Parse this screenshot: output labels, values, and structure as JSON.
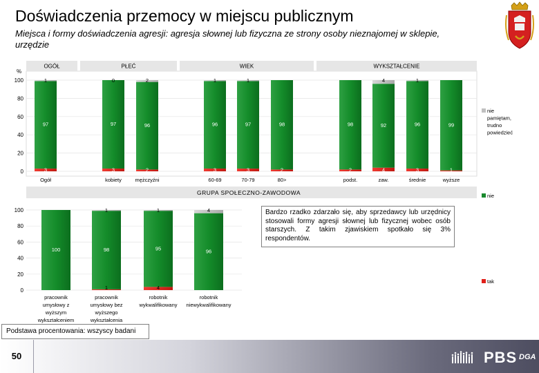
{
  "header": {
    "title": "Doświadczenia przemocy w miejscu publicznym",
    "subtitle": "Miejsca i formy doświadczenia agresji: agresja słownej lub fizyczna ze strony osoby nieznajomej w sklepie, urzędzie"
  },
  "colors": {
    "nie": "#1a8a2e",
    "tak": "#e0201a",
    "nie_pamietam": "#c0c0c0",
    "group_header_bg": "#e6e6e6"
  },
  "chart_data": [
    {
      "type": "bar",
      "stacked": true,
      "ylabel": "%",
      "ylim": [
        0,
        100
      ],
      "yticks": [
        0,
        20,
        40,
        60,
        80,
        100
      ],
      "groups": [
        {
          "label": "OGÓŁ",
          "categories": [
            "Ogół"
          ]
        },
        {
          "label": "PŁEĆ",
          "categories": [
            "kobiety",
            "mężczyźni"
          ]
        },
        {
          "label": "WIEK",
          "categories": [
            "60-69",
            "70-79",
            "80>"
          ]
        },
        {
          "label": "WYKSZTAŁCENIE",
          "categories": [
            "podst.",
            "zaw.",
            "średnie",
            "wyższe"
          ]
        }
      ],
      "categories": [
        "Ogół",
        "kobiety",
        "mężczyźni",
        "60-69",
        "70-79",
        "80>",
        "podst.",
        "zaw.",
        "średnie",
        "wyższe"
      ],
      "series": [
        {
          "name": "tak",
          "values": [
            3,
            3,
            2,
            3,
            3,
            2,
            2,
            4,
            3,
            1
          ],
          "labels": [
            "3",
            "3",
            "2",
            "3",
            "3",
            "2",
            "2",
            "4",
            "3",
            "1"
          ]
        },
        {
          "name": "nie",
          "values": [
            97,
            97,
            96,
            96,
            97,
            98,
            98,
            92,
            96,
            99
          ],
          "labels": [
            "97",
            "97",
            "96",
            "96",
            "97",
            "98",
            "98",
            "92",
            "96",
            "99"
          ]
        },
        {
          "name": "nie pamiętam, trudno powiedzieć",
          "values": [
            1,
            0,
            2,
            1,
            1,
            0,
            0,
            4,
            1,
            0
          ],
          "labels": [
            "1",
            "0",
            "2",
            "1",
            "1",
            "",
            "",
            "4",
            "1",
            ""
          ]
        }
      ]
    },
    {
      "type": "bar",
      "stacked": true,
      "title": "GRUPA SPOŁECZNO-ZAWODOWA",
      "ylim": [
        0,
        100
      ],
      "yticks": [
        0,
        20,
        40,
        60,
        80,
        100
      ],
      "categories": [
        "pracownik umysłowy z wyższym wykształceniem",
        "pracownik umysłowy bez wyższego wykształcenia",
        "robotnik wykwalifikowany",
        "robotnik niewykwalifikowany"
      ],
      "series": [
        {
          "name": "tak",
          "values": [
            0,
            1,
            4,
            0
          ],
          "labels": [
            "",
            "1",
            "4",
            ""
          ]
        },
        {
          "name": "nie",
          "values": [
            100,
            98,
            95,
            96
          ],
          "labels": [
            "100",
            "98",
            "95",
            "96"
          ]
        },
        {
          "name": "nie pamiętam, trudno powiedzieć",
          "values": [
            0,
            1,
            1,
            4
          ],
          "labels": [
            "",
            "1",
            "1",
            "4"
          ]
        }
      ]
    }
  ],
  "legend": {
    "nie_pamietam": "nie pamiętam, trudno powiedzieć",
    "nie": "nie",
    "tak": "tak"
  },
  "note": "Bardzo rzadko zdarzało się, aby sprzedawcy lub urzędnicy stosowali formy agresji słownej lub fizycznej wobec osób starszych. Z takim zjawiskiem spotkało się 3% respondentów.",
  "footer": {
    "base": "Podstawa procentowania: wszyscy badani",
    "page_number": "50",
    "logo_text": "PBS",
    "logo_sub": "DGA"
  }
}
